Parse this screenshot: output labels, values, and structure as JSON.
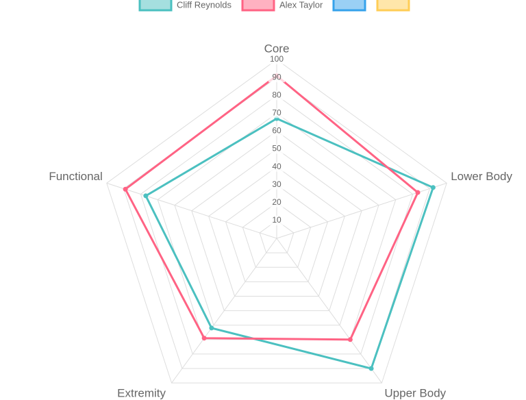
{
  "chart_data": {
    "type": "radar",
    "categories": [
      "Core",
      "Lower Body",
      "Upper Body",
      "Extremity",
      "Functional"
    ],
    "series": [
      {
        "name": "Cliff Reynolds",
        "color": "#4bc0c0",
        "values": [
          67,
          92,
          90,
          62,
          77
        ]
      },
      {
        "name": "Alex Taylor",
        "color": "#ff6384",
        "values": [
          91,
          83,
          70,
          69,
          89
        ]
      },
      {
        "name": null,
        "color": "#36a2eb",
        "values": [
          null,
          null,
          null,
          null,
          null
        ]
      },
      {
        "name": null,
        "color": "#ffcd56",
        "values": [
          null,
          null,
          null,
          null,
          null
        ]
      }
    ],
    "ylim": [
      0,
      100
    ],
    "yticks": [
      10,
      20,
      30,
      40,
      50,
      60,
      70,
      80,
      90,
      100
    ],
    "grid": true
  }
}
